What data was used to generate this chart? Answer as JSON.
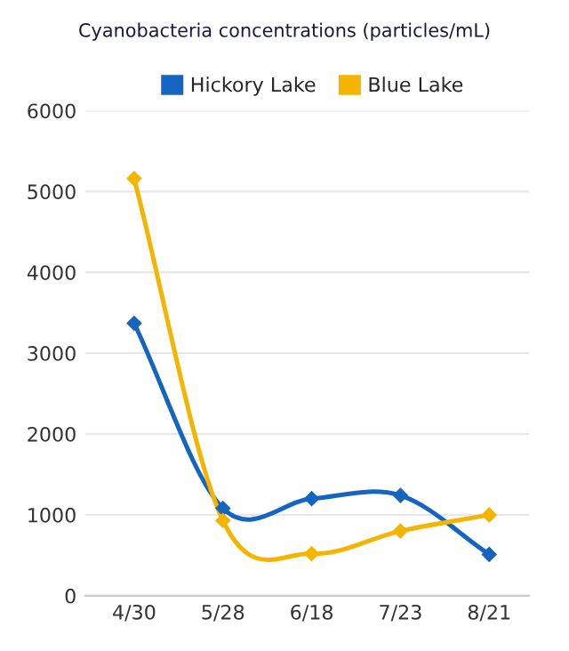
{
  "chart_data": {
    "type": "line",
    "title": "Cyanobacteria concentrations (particles/mL)",
    "categories": [
      "4/30",
      "5/28",
      "6/18",
      "7/23",
      "8/21"
    ],
    "series": [
      {
        "name": "Hickory Lake",
        "color": "#1565c0",
        "values": [
          3370,
          1080,
          1200,
          1240,
          510
        ]
      },
      {
        "name": "Blue Lake",
        "color": "#f4b400",
        "values": [
          5160,
          930,
          520,
          800,
          1000
        ]
      }
    ],
    "ylim": [
      0,
      6000
    ],
    "yticks": [
      0,
      1000,
      2000,
      3000,
      4000,
      5000,
      6000
    ],
    "grid": "y",
    "legend": "top",
    "marker": "diamond",
    "line_style": "solid"
  }
}
